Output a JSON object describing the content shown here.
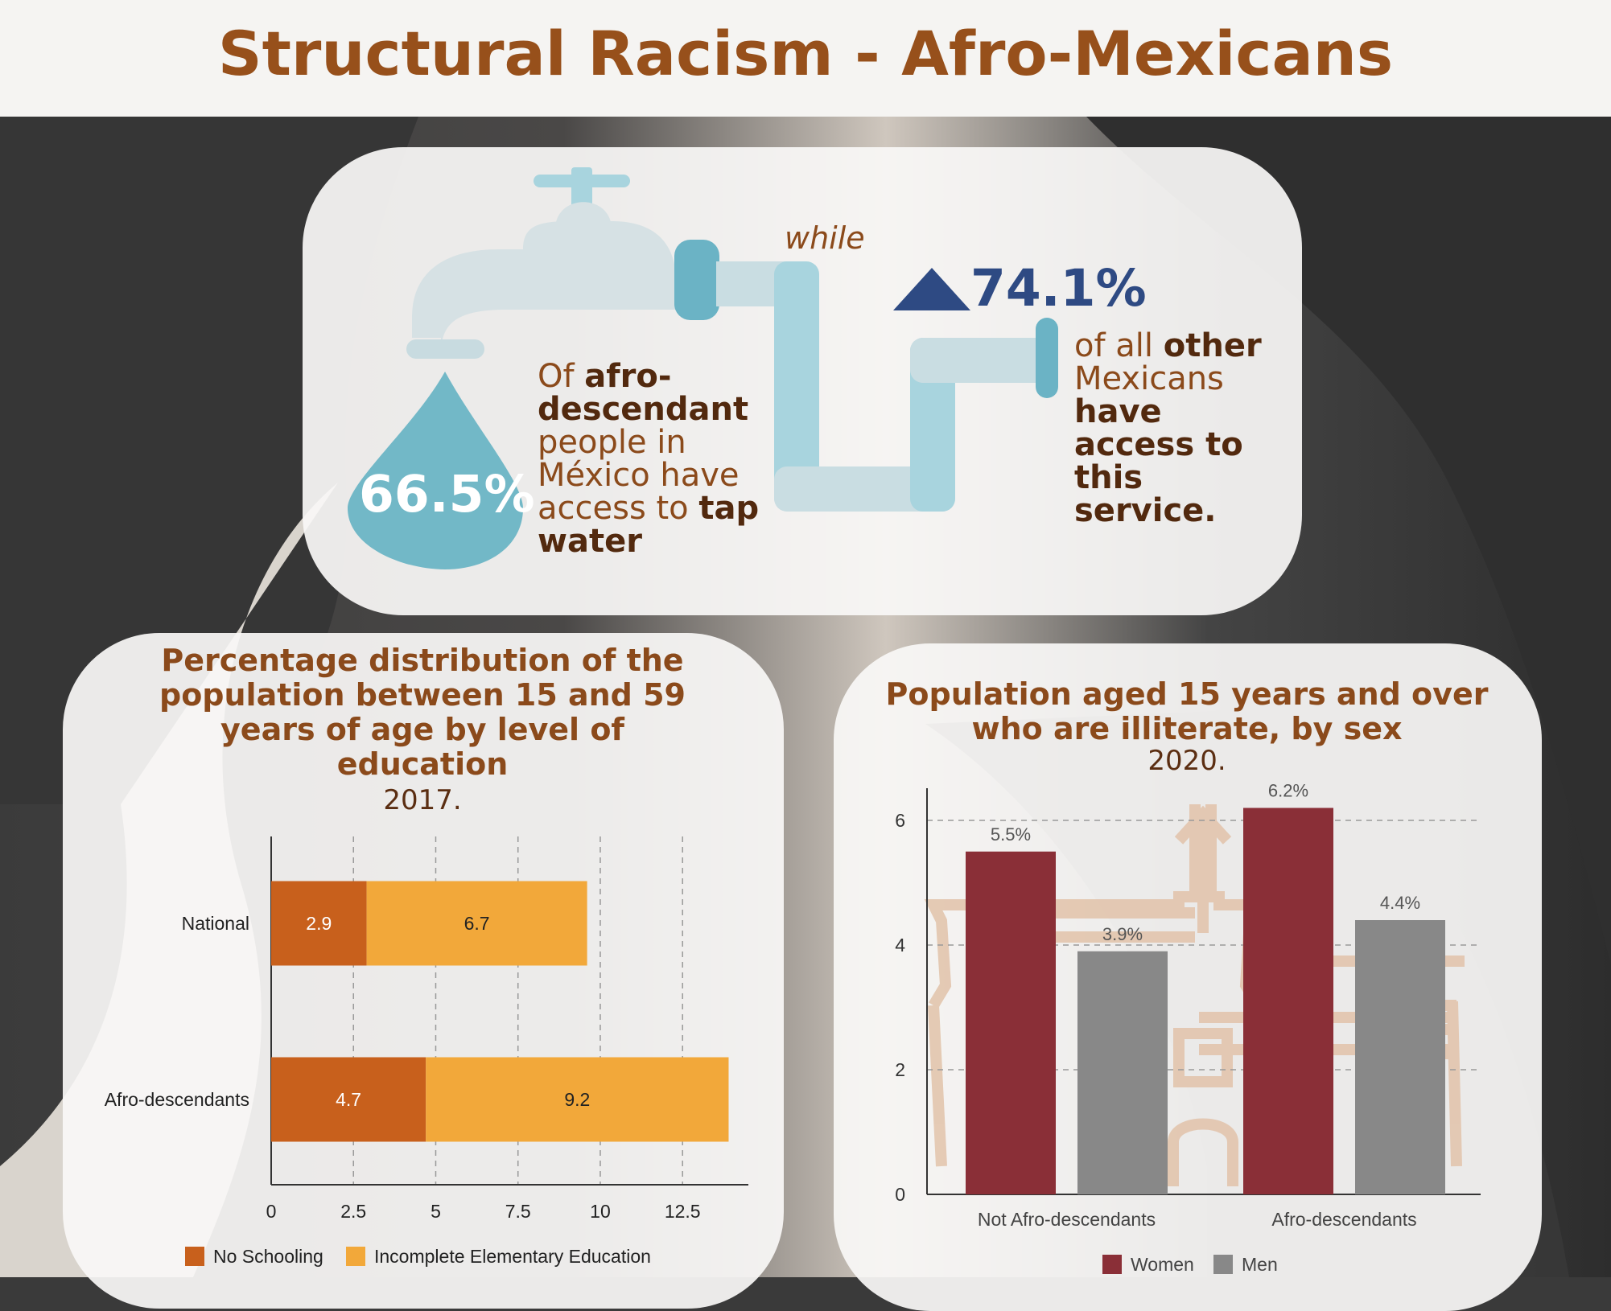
{
  "title": "Structural Racism - Afro-Mexicans",
  "water": {
    "afro_percent": "66.5%",
    "afro_text_1": "Of ",
    "afro_text_2": "afro-descendant",
    "afro_text_3": " people in México have access to ",
    "afro_text_4": "tap water",
    "connector": "while",
    "other_percent": "74.1%",
    "other_text_1": "of all ",
    "other_text_2": "other",
    "other_text_3": " Mexicans ",
    "other_text_4": "have access to this service.",
    "icons": [
      "faucet-icon",
      "water-drop-icon",
      "pipe-icon",
      "up-triangle-icon"
    ],
    "colors": {
      "drop": "#72b8c7",
      "pipe": "#a8d4de",
      "faucet": "#d6e1e4",
      "triangle": "#2e4a83"
    }
  },
  "chart_data": [
    {
      "type": "bar",
      "orientation": "horizontal",
      "stacked": true,
      "title": "Percentage distribution of the population between 15 and 59 years of age by level of education",
      "subtitle": "2017.",
      "categories": [
        "National",
        "Afro-descendants"
      ],
      "series": [
        {
          "name": "No Schooling",
          "values": [
            2.9,
            4.7
          ],
          "color": "#c8601c"
        },
        {
          "name": "Incomplete Elementary Education",
          "values": [
            6.7,
            9.2
          ],
          "color": "#f2a83a"
        }
      ],
      "xlim": [
        0,
        14.5
      ],
      "xticks": [
        "0",
        "2.5",
        "5",
        "7.5",
        "10",
        "12.5"
      ],
      "grid": "vertical dashed",
      "legend": "bottom"
    },
    {
      "type": "bar",
      "title": "Population aged 15 years and over who are illiterate, by sex",
      "subtitle": "2020.",
      "categories": [
        "Not Afro-descendants",
        "Afro-descendants"
      ],
      "series": [
        {
          "name": "Women",
          "values": [
            5.5,
            6.2
          ],
          "labels": [
            "5.5%",
            "6.2%"
          ],
          "color": "#8a2f37"
        },
        {
          "name": "Men",
          "values": [
            3.9,
            4.4
          ],
          "labels": [
            "3.9%",
            "4.4%"
          ],
          "color": "#888888"
        }
      ],
      "ylim": [
        0,
        6.6
      ],
      "yticks": [
        "0",
        "2",
        "4",
        "6"
      ],
      "grid": "horizontal dashed",
      "legend": "bottom"
    }
  ]
}
